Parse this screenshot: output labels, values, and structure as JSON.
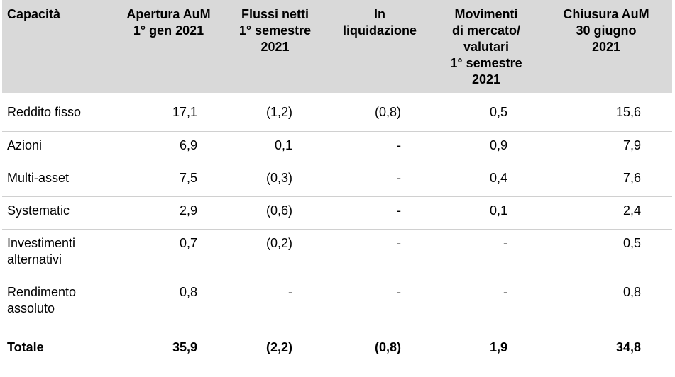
{
  "headers": [
    "Capacità",
    "Apertura AuM\n1° gen 2021",
    "Flussi netti\n1° semestre\n2021",
    "In\nliquidazione",
    "Movimenti\ndi mercato/\nvalutari\n1° semestre\n2021",
    "Chiusura AuM\n30 giugno\n2021"
  ],
  "rows": [
    {
      "label": "Reddito fisso",
      "values": [
        "17,1",
        "(1,2)",
        "(0,8)",
        "0,5",
        "15,6"
      ]
    },
    {
      "label": "Azioni",
      "values": [
        "6,9",
        "0,1",
        "-",
        "0,9",
        "7,9"
      ]
    },
    {
      "label": "Multi-asset",
      "values": [
        "7,5",
        "(0,3)",
        "-",
        "0,4",
        "7,6"
      ]
    },
    {
      "label": "Systematic",
      "values": [
        "2,9",
        "(0,6)",
        "-",
        "0,1",
        "2,4"
      ]
    },
    {
      "label": "Investimenti\nalternativi",
      "values": [
        "0,7",
        "(0,2)",
        "-",
        "-",
        "0,5"
      ]
    },
    {
      "label": "Rendimento\nassoluto",
      "values": [
        "0,8",
        "-",
        "-",
        "-",
        "0,8"
      ]
    }
  ],
  "total": {
    "label": "Totale",
    "values": [
      "35,9",
      "(2,2)",
      "(0,8)",
      "1,9",
      "34,8"
    ]
  }
}
